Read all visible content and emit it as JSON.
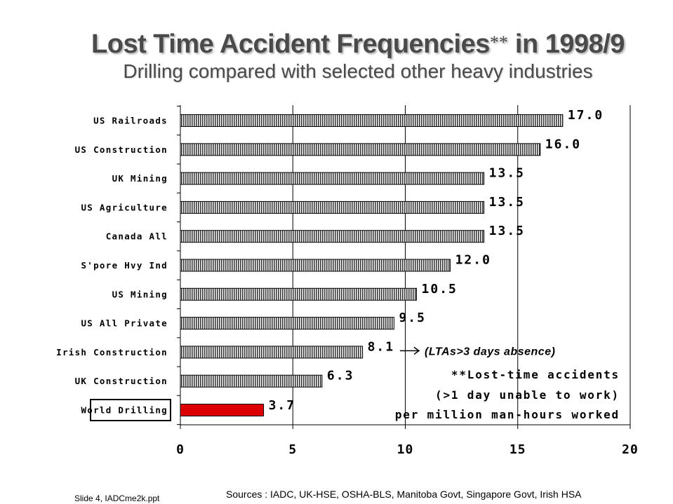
{
  "title": {
    "main": "Lost Time Accident Frequencies",
    "stars": "**",
    "year": "in 1998/9",
    "subtitle": "Drilling compared with selected other heavy industries"
  },
  "chart_data": {
    "type": "bar",
    "orientation": "horizontal",
    "categories": [
      "US Railroads",
      "US Construction",
      "UK Mining",
      "US Agriculture",
      "Canada All",
      "S'pore Hvy Ind",
      "US Mining",
      "US All Private",
      "Irish Construction",
      "UK Construction",
      "World Drilling"
    ],
    "values": [
      17.0,
      16.0,
      13.5,
      13.5,
      13.5,
      12.0,
      10.5,
      9.5,
      8.1,
      6.3,
      3.7
    ],
    "value_labels": [
      "17.0",
      "16.0",
      "13.5",
      "13.5",
      "13.5",
      "12.0",
      "10.5",
      "9.5",
      "8.1",
      "6.3",
      "3.7"
    ],
    "highlight_category": "World Drilling",
    "highlight_color": "#dd0000",
    "bar_color": "#555555",
    "xlim": [
      0,
      20
    ],
    "xticks": [
      0,
      5,
      10,
      15,
      20
    ],
    "grid": "vertical",
    "annotations": {
      "arrow_note": "(LTAs>3 days absence)",
      "definition_lines": [
        "**Lost-time accidents",
        "(>1 day unable to work)",
        "per million man-hours worked"
      ]
    }
  },
  "footer": {
    "slide_ref": "Slide 4, IADCme2k.ppt",
    "sources": "Sources : IADC, UK-HSE, OSHA-BLS, Manitoba Govt, Singapore Govt, Irish HSA"
  }
}
